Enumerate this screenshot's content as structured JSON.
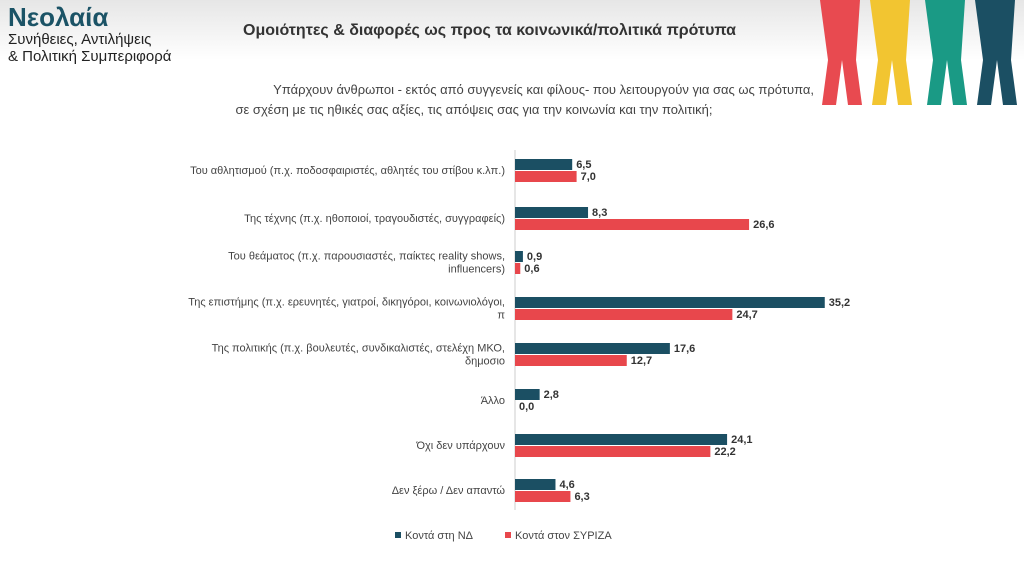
{
  "header": {
    "brand": "Νεολαία",
    "subtitle1": "Συνήθειες, Αντιλήψεις",
    "subtitle2": "& Πολιτική Συμπεριφορά",
    "title": "Ομοιότητες & διαφορές ως προς τα κοινωνικά/πολιτικά πρότυπα",
    "question1": "Υπάρχουν άνθρωποι - εκτός από συγγενείς και φίλους- που λειτουργούν για σας ως πρότυπα,",
    "question2": "σε σχέση με τις ηθικές σας αξίες, τις απόψεις σας για την κοινωνία και την πολιτική;"
  },
  "colors": {
    "nd": "#1b4f63",
    "syriza": "#e8474c",
    "red": "#e84a50",
    "yellow": "#f2c531",
    "green": "#1a9a85",
    "navy": "#1b4f63"
  },
  "chart_data": {
    "type": "bar",
    "orientation": "horizontal",
    "categories": [
      [
        "Του αθλητισμού (π.χ. ποδοσφαιριστές, αθλητές του στίβου κ.λπ.)"
      ],
      [
        "Της τέχνης (π.χ. ηθοποιοί, τραγουδιστές, συγγραφείς)"
      ],
      [
        "Του θεάματος (π.χ. παρουσιαστές, παίκτες reality shows,",
        "influencers)"
      ],
      [
        "Της επιστήμης (π.χ. ερευνητές, γιατροί, δικηγόροι, κοινωνιολόγοι,",
        "π"
      ],
      [
        "Της πολιτικής (π.χ. βουλευτές, συνδικαλιστές, στελέχη ΜΚΟ,",
        "δημοσιο"
      ],
      [
        "Άλλο"
      ],
      [
        "Όχι δεν υπάρχουν"
      ],
      [
        "Δεν ξέρω / Δεν απαντώ"
      ]
    ],
    "series": [
      {
        "name": "Κοντά στη ΝΔ",
        "values": [
          6.5,
          8.3,
          0.9,
          35.2,
          17.6,
          2.8,
          24.1,
          4.6
        ],
        "labels": [
          "6,5",
          "8,3",
          "0,9",
          "35,2",
          "17,6",
          "2,8",
          "24,1",
          "4,6"
        ]
      },
      {
        "name": "Κοντά στον ΣΥΡΙΖΑ",
        "values": [
          7.0,
          26.6,
          0.6,
          24.7,
          12.7,
          0.0,
          22.2,
          6.3
        ],
        "labels": [
          "7,0",
          "26,6",
          "0,6",
          "24,7",
          "12,7",
          "0,0",
          "22,2",
          "6,3"
        ]
      }
    ],
    "xlim": [
      0,
      40
    ],
    "legend": "bottom"
  }
}
